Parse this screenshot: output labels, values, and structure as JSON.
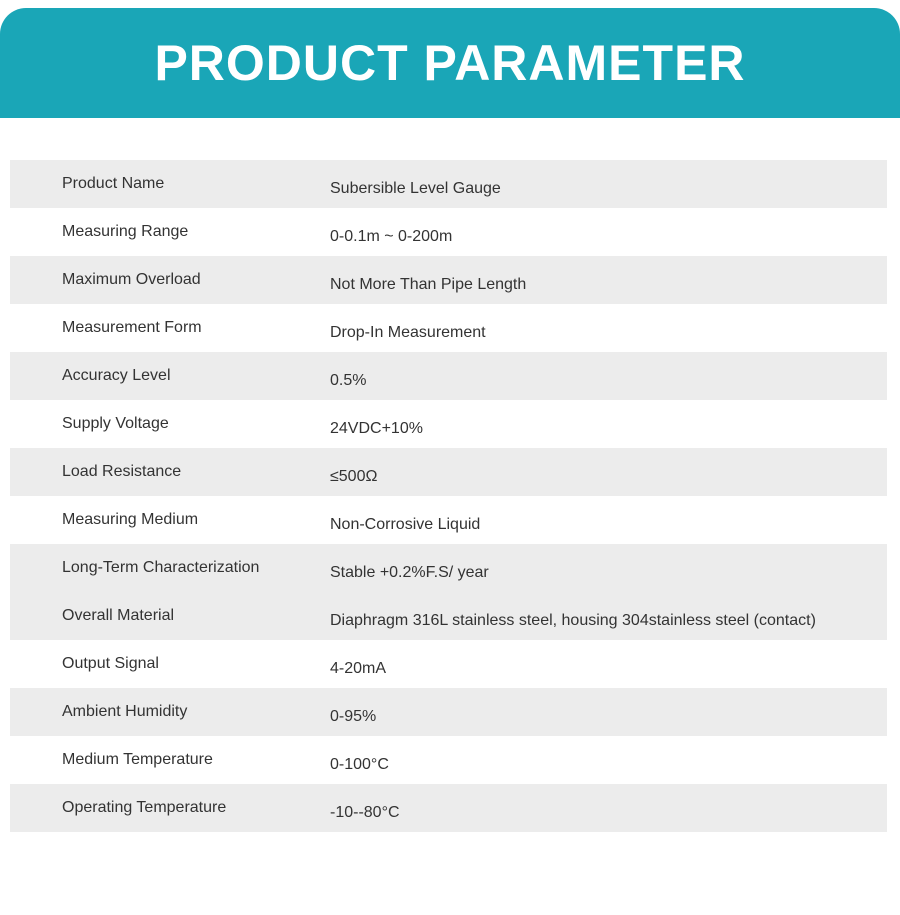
{
  "banner": {
    "title": "PRODUCT PARAMETER"
  },
  "colors": {
    "accent": "#1AA6B7",
    "row_shade": "#ECECEC",
    "text": "#333333",
    "banner_text": "#FFFFFF"
  },
  "table": {
    "rows": [
      {
        "label": "Product Name",
        "value": "Subersible Level Gauge",
        "shaded": true
      },
      {
        "label": "Measuring Range",
        "value": "0-0.1m ~ 0-200m",
        "shaded": false
      },
      {
        "label": "Maximum Overload",
        "value": "Not More Than Pipe Length",
        "shaded": true
      },
      {
        "label": "Measurement Form",
        "value": "Drop-In Measurement",
        "shaded": false
      },
      {
        "label": "Accuracy Level",
        "value": "0.5%",
        "shaded": true
      },
      {
        "label": "Supply Voltage",
        "value": "24VDC+10%",
        "shaded": false
      },
      {
        "label": "Load Resistance",
        "value": "≤500Ω",
        "shaded": true
      },
      {
        "label": "Measuring Medium",
        "value": "Non-Corrosive Liquid",
        "shaded": false
      },
      {
        "label": "Long-Term Characterization",
        "value": "Stable +0.2%F.S/ year",
        "shaded": true
      },
      {
        "label": "Overall Material",
        "value": "Diaphragm 316L stainless steel, housing 304stainless steel (contact)",
        "shaded": true
      },
      {
        "label": "Output Signal",
        "value": "4-20mA",
        "shaded": false
      },
      {
        "label": "Ambient Humidity",
        "value": "0-95%",
        "shaded": true
      },
      {
        "label": "Medium Temperature",
        "value": "0-100°C",
        "shaded": false
      },
      {
        "label": "Operating Temperature",
        "value": "-10--80°C",
        "shaded": true
      }
    ]
  }
}
